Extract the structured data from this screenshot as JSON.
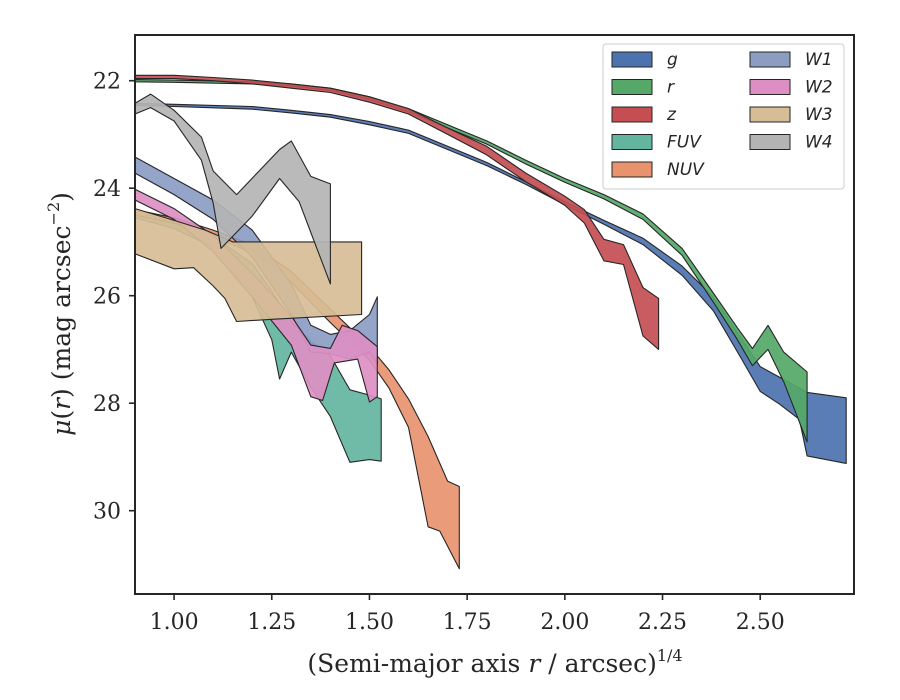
{
  "chart_data": {
    "type": "area",
    "title": "",
    "xlabel": "(Semi-major axis r / arcsec)",
    "xlabel_parts": {
      "prefix": "(Semi-major axis ",
      "var": "r",
      "suffix": " / arcsec)",
      "sup": "1/4"
    },
    "ylabel": "μ(r) (mag arcsec⁻²)",
    "ylabel_parts": {
      "mu": "μ",
      "open": "(",
      "var": "r",
      "close": ")",
      "unit": " (mag arcsec",
      "sup": "−2",
      "end": ")"
    },
    "xlim": [
      0.9,
      2.74
    ],
    "ylim": [
      31.55,
      21.15
    ],
    "y_inverted": true,
    "xticks": [
      "1.00",
      "1.25",
      "1.50",
      "1.75",
      "2.00",
      "2.25",
      "2.50"
    ],
    "xtick_values": [
      1.0,
      1.25,
      1.5,
      1.75,
      2.0,
      2.25,
      2.5
    ],
    "yticks": [
      "22",
      "24",
      "26",
      "28",
      "30"
    ],
    "ytick_values": [
      22,
      24,
      26,
      28,
      30
    ],
    "grid": false,
    "legend": {
      "placement": "top-right",
      "columns": 2
    },
    "series": [
      {
        "name": "g",
        "color": "#4c72b0",
        "upper": [
          [
            0.9,
            22.42
          ],
          [
            1.0,
            22.44
          ],
          [
            1.2,
            22.48
          ],
          [
            1.3,
            22.55
          ],
          [
            1.4,
            22.63
          ],
          [
            1.5,
            22.76
          ],
          [
            1.6,
            22.92
          ],
          [
            1.7,
            23.22
          ],
          [
            1.8,
            23.52
          ],
          [
            1.9,
            23.88
          ],
          [
            2.0,
            24.25
          ],
          [
            2.1,
            24.6
          ],
          [
            2.2,
            24.93
          ],
          [
            2.3,
            25.45
          ],
          [
            2.38,
            26.02
          ],
          [
            2.45,
            26.78
          ],
          [
            2.5,
            27.32
          ],
          [
            2.55,
            27.52
          ],
          [
            2.6,
            27.72
          ],
          [
            2.62,
            27.8
          ],
          [
            2.72,
            27.9
          ]
        ],
        "lower": [
          [
            0.9,
            22.46
          ],
          [
            1.0,
            22.48
          ],
          [
            1.2,
            22.53
          ],
          [
            1.3,
            22.6
          ],
          [
            1.4,
            22.68
          ],
          [
            1.5,
            22.82
          ],
          [
            1.6,
            22.98
          ],
          [
            1.7,
            23.28
          ],
          [
            1.8,
            23.58
          ],
          [
            1.9,
            23.93
          ],
          [
            2.0,
            24.31
          ],
          [
            2.1,
            24.67
          ],
          [
            2.2,
            25.05
          ],
          [
            2.3,
            25.62
          ],
          [
            2.38,
            26.28
          ],
          [
            2.45,
            27.15
          ],
          [
            2.5,
            27.78
          ],
          [
            2.55,
            28.02
          ],
          [
            2.6,
            28.3
          ],
          [
            2.62,
            28.98
          ],
          [
            2.72,
            29.12
          ]
        ]
      },
      {
        "name": "r",
        "color": "#55a868",
        "upper": [
          [
            0.9,
            21.98
          ],
          [
            1.0,
            21.99
          ],
          [
            1.2,
            22.02
          ],
          [
            1.3,
            22.06
          ],
          [
            1.4,
            22.14
          ],
          [
            1.5,
            22.3
          ],
          [
            1.6,
            22.52
          ],
          [
            1.7,
            22.82
          ],
          [
            1.8,
            23.12
          ],
          [
            1.9,
            23.48
          ],
          [
            2.0,
            23.82
          ],
          [
            2.1,
            24.12
          ],
          [
            2.2,
            24.48
          ],
          [
            2.3,
            25.12
          ],
          [
            2.38,
            25.95
          ],
          [
            2.44,
            26.58
          ],
          [
            2.48,
            26.98
          ],
          [
            2.52,
            26.55
          ],
          [
            2.56,
            27.05
          ],
          [
            2.62,
            27.42
          ]
        ],
        "lower": [
          [
            0.9,
            22.02
          ],
          [
            1.0,
            22.03
          ],
          [
            1.2,
            22.06
          ],
          [
            1.3,
            22.1
          ],
          [
            1.4,
            22.18
          ],
          [
            1.5,
            22.35
          ],
          [
            1.6,
            22.58
          ],
          [
            1.7,
            22.88
          ],
          [
            1.8,
            23.18
          ],
          [
            1.9,
            23.55
          ],
          [
            2.0,
            23.89
          ],
          [
            2.1,
            24.2
          ],
          [
            2.2,
            24.58
          ],
          [
            2.3,
            25.25
          ],
          [
            2.38,
            26.12
          ],
          [
            2.44,
            26.8
          ],
          [
            2.48,
            27.3
          ],
          [
            2.52,
            27.0
          ],
          [
            2.56,
            27.6
          ],
          [
            2.62,
            28.72
          ]
        ]
      },
      {
        "name": "z",
        "color": "#c44e52",
        "upper": [
          [
            0.9,
            21.9
          ],
          [
            1.0,
            21.9
          ],
          [
            1.1,
            21.94
          ],
          [
            1.2,
            21.99
          ],
          [
            1.3,
            22.06
          ],
          [
            1.4,
            22.14
          ],
          [
            1.5,
            22.3
          ],
          [
            1.6,
            22.52
          ],
          [
            1.7,
            22.88
          ],
          [
            1.8,
            23.22
          ],
          [
            1.9,
            23.72
          ],
          [
            2.0,
            24.15
          ],
          [
            2.05,
            24.4
          ],
          [
            2.1,
            24.95
          ],
          [
            2.15,
            25.05
          ],
          [
            2.2,
            25.85
          ],
          [
            2.24,
            26.05
          ]
        ],
        "lower": [
          [
            0.9,
            21.96
          ],
          [
            1.0,
            21.96
          ],
          [
            1.1,
            22.0
          ],
          [
            1.2,
            22.06
          ],
          [
            1.3,
            22.14
          ],
          [
            1.4,
            22.22
          ],
          [
            1.5,
            22.4
          ],
          [
            1.6,
            22.62
          ],
          [
            1.7,
            23.0
          ],
          [
            1.8,
            23.38
          ],
          [
            1.9,
            23.88
          ],
          [
            2.0,
            24.32
          ],
          [
            2.05,
            24.65
          ],
          [
            2.1,
            25.35
          ],
          [
            2.15,
            25.42
          ],
          [
            2.2,
            26.75
          ],
          [
            2.24,
            27.0
          ]
        ]
      },
      {
        "name": "FUV",
        "color": "#64b5a0",
        "upper": [
          [
            0.9,
            24.45
          ],
          [
            1.0,
            24.62
          ],
          [
            1.1,
            24.9
          ],
          [
            1.2,
            25.4
          ],
          [
            1.25,
            25.92
          ],
          [
            1.3,
            26.48
          ],
          [
            1.35,
            26.85
          ],
          [
            1.4,
            27.12
          ],
          [
            1.45,
            27.75
          ],
          [
            1.5,
            27.85
          ],
          [
            1.53,
            27.92
          ]
        ],
        "lower": [
          [
            0.9,
            24.55
          ],
          [
            1.0,
            24.75
          ],
          [
            1.1,
            25.1
          ],
          [
            1.2,
            26.02
          ],
          [
            1.25,
            26.82
          ],
          [
            1.27,
            27.55
          ],
          [
            1.3,
            27.05
          ],
          [
            1.35,
            27.7
          ],
          [
            1.4,
            28.25
          ],
          [
            1.45,
            29.1
          ],
          [
            1.5,
            29.05
          ],
          [
            1.53,
            29.08
          ]
        ]
      },
      {
        "name": "NUV",
        "color": "#e8926e",
        "upper": [
          [
            0.9,
            24.4
          ],
          [
            1.0,
            24.55
          ],
          [
            1.1,
            24.78
          ],
          [
            1.2,
            25.05
          ],
          [
            1.3,
            25.55
          ],
          [
            1.4,
            26.25
          ],
          [
            1.5,
            26.95
          ],
          [
            1.55,
            27.38
          ],
          [
            1.6,
            27.92
          ],
          [
            1.65,
            28.62
          ],
          [
            1.7,
            29.45
          ],
          [
            1.73,
            29.55
          ]
        ],
        "lower": [
          [
            0.9,
            24.5
          ],
          [
            1.0,
            24.65
          ],
          [
            1.1,
            24.9
          ],
          [
            1.2,
            25.2
          ],
          [
            1.3,
            25.75
          ],
          [
            1.4,
            26.5
          ],
          [
            1.5,
            27.2
          ],
          [
            1.55,
            27.72
          ],
          [
            1.6,
            28.45
          ],
          [
            1.65,
            30.3
          ],
          [
            1.68,
            30.38
          ],
          [
            1.73,
            31.08
          ]
        ]
      },
      {
        "name": "W1",
        "color": "#8c9dc4",
        "upper": [
          [
            0.9,
            23.42
          ],
          [
            1.0,
            23.82
          ],
          [
            1.1,
            24.22
          ],
          [
            1.2,
            24.78
          ],
          [
            1.3,
            25.78
          ],
          [
            1.35,
            26.55
          ],
          [
            1.4,
            26.72
          ],
          [
            1.45,
            26.65
          ],
          [
            1.5,
            26.35
          ],
          [
            1.52,
            26.02
          ]
        ],
        "lower": [
          [
            0.9,
            23.72
          ],
          [
            1.0,
            24.12
          ],
          [
            1.1,
            24.58
          ],
          [
            1.2,
            25.28
          ],
          [
            1.3,
            26.35
          ],
          [
            1.35,
            27.05
          ],
          [
            1.4,
            27.08
          ],
          [
            1.45,
            27.18
          ],
          [
            1.5,
            27.05
          ],
          [
            1.52,
            27.28
          ]
        ]
      },
      {
        "name": "W2",
        "color": "#dd8fc4",
        "upper": [
          [
            0.9,
            24.02
          ],
          [
            1.0,
            24.38
          ],
          [
            1.1,
            24.88
          ],
          [
            1.2,
            25.58
          ],
          [
            1.3,
            26.38
          ],
          [
            1.35,
            26.92
          ],
          [
            1.4,
            26.98
          ],
          [
            1.43,
            26.55
          ],
          [
            1.47,
            26.65
          ],
          [
            1.52,
            26.95
          ]
        ],
        "lower": [
          [
            0.9,
            24.22
          ],
          [
            1.0,
            24.58
          ],
          [
            1.1,
            25.18
          ],
          [
            1.2,
            26.02
          ],
          [
            1.3,
            26.92
          ],
          [
            1.35,
            27.88
          ],
          [
            1.38,
            27.95
          ],
          [
            1.41,
            27.25
          ],
          [
            1.47,
            27.18
          ],
          [
            1.5,
            27.98
          ],
          [
            1.52,
            27.88
          ]
        ]
      },
      {
        "name": "W3",
        "color": "#d7bd96",
        "upper": [
          [
            0.9,
            24.38
          ],
          [
            1.0,
            24.6
          ],
          [
            1.08,
            24.78
          ],
          [
            1.15,
            25.0
          ],
          [
            1.25,
            25.0
          ],
          [
            1.48,
            25.0
          ]
        ],
        "lower": [
          [
            0.9,
            25.22
          ],
          [
            1.0,
            25.5
          ],
          [
            1.05,
            25.48
          ],
          [
            1.1,
            25.82
          ],
          [
            1.13,
            26.05
          ],
          [
            1.16,
            26.48
          ],
          [
            1.25,
            26.44
          ],
          [
            1.48,
            26.35
          ]
        ]
      },
      {
        "name": "W4",
        "color": "#b4b4b4",
        "upper": [
          [
            0.9,
            22.42
          ],
          [
            0.94,
            22.25
          ],
          [
            1.0,
            22.55
          ],
          [
            1.07,
            23.05
          ],
          [
            1.1,
            23.68
          ],
          [
            1.16,
            24.12
          ],
          [
            1.27,
            23.28
          ],
          [
            1.3,
            23.12
          ],
          [
            1.35,
            23.78
          ],
          [
            1.4,
            23.92
          ]
        ],
        "lower": [
          [
            0.9,
            22.62
          ],
          [
            0.94,
            22.5
          ],
          [
            1.0,
            22.75
          ],
          [
            1.07,
            23.48
          ],
          [
            1.1,
            24.28
          ],
          [
            1.12,
            25.12
          ],
          [
            1.2,
            24.52
          ],
          [
            1.27,
            23.82
          ],
          [
            1.32,
            24.25
          ],
          [
            1.36,
            25.02
          ],
          [
            1.4,
            25.78
          ]
        ]
      }
    ]
  }
}
